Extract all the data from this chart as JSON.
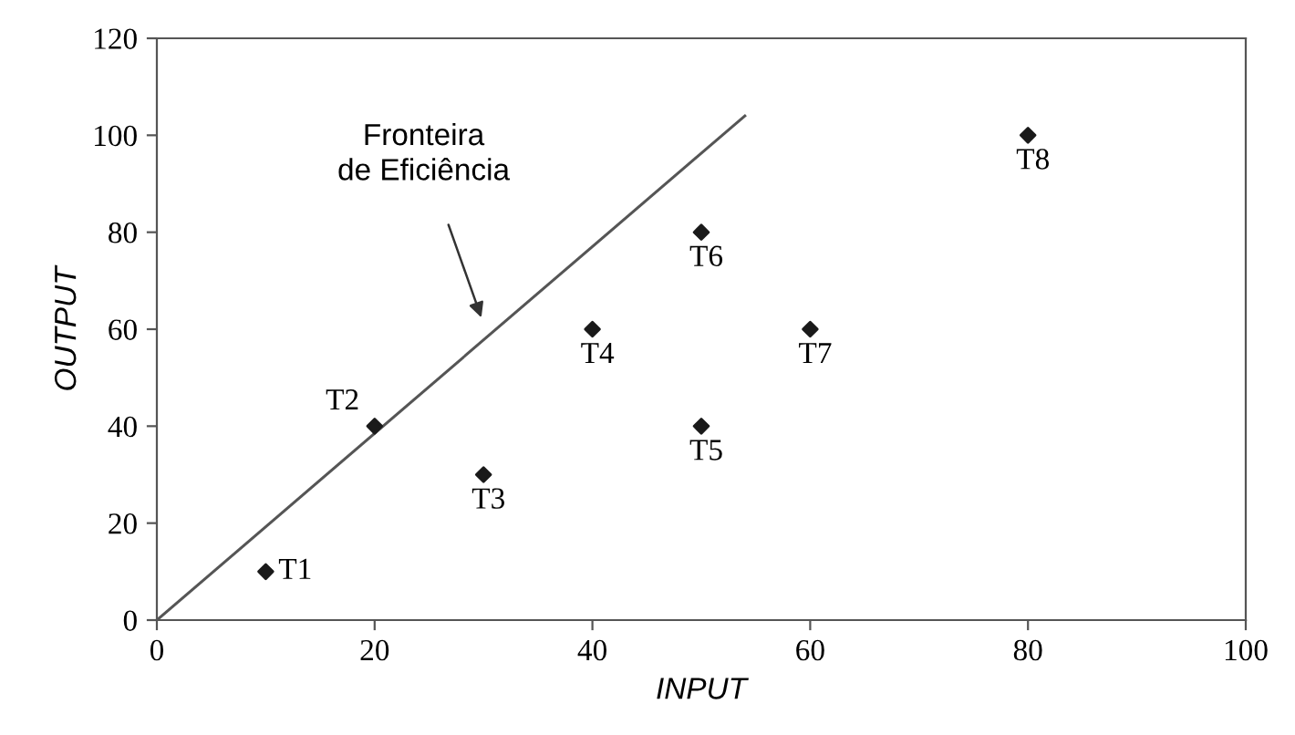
{
  "chart_data": {
    "type": "scatter",
    "xlabel": "INPUT",
    "ylabel": "OUTPUT",
    "xlim": [
      0,
      100
    ],
    "ylim": [
      0,
      120
    ],
    "xticks": [
      0,
      20,
      40,
      60,
      80,
      100
    ],
    "yticks": [
      0,
      20,
      40,
      60,
      80,
      100,
      120
    ],
    "grid": false,
    "legend": false,
    "series": [
      {
        "color": "#1a1a1a",
        "marker": "diamond",
        "x": [
          10,
          20,
          30,
          40,
          50,
          50,
          60,
          80
        ],
        "values": [
          10,
          40,
          30,
          60,
          40,
          80,
          60,
          100
        ]
      },
      {
        "type": "line",
        "color": "#555555",
        "marker": "none",
        "line_style": "solid",
        "x": [
          0,
          54
        ],
        "values": [
          0,
          104
        ]
      }
    ],
    "annotations": [
      {
        "text": "T1",
        "x": 10,
        "y": 10
      },
      {
        "text": "T2",
        "x": 20,
        "y": 40
      },
      {
        "text": "T3",
        "x": 30,
        "y": 30
      },
      {
        "text": "T4",
        "x": 40,
        "y": 60
      },
      {
        "text": "T5",
        "x": 50,
        "y": 40
      },
      {
        "text": "T6",
        "x": 50,
        "y": 80
      },
      {
        "text": "T7",
        "x": 60,
        "y": 60
      },
      {
        "text": "T8",
        "x": 80,
        "y": 100
      },
      "Fronteira\nde Eficiência"
    ]
  }
}
